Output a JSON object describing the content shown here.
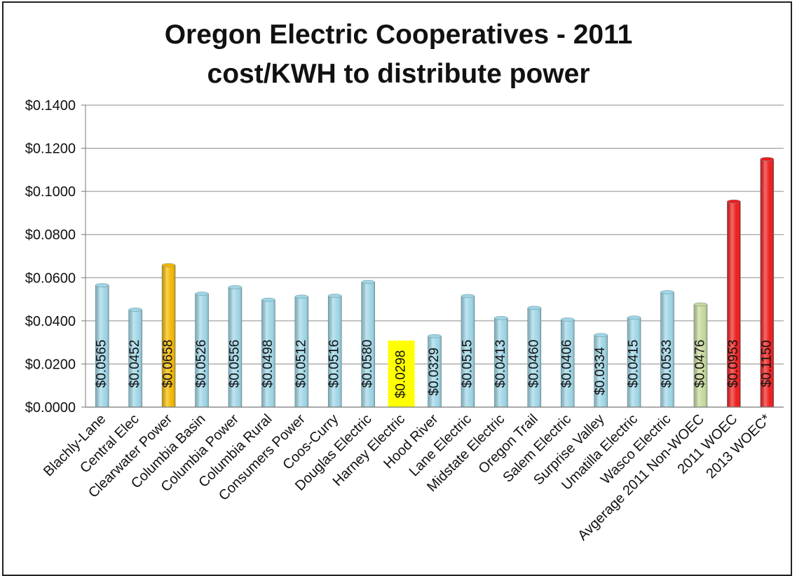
{
  "chart_data": {
    "type": "bar",
    "title": "Oregon Electric Cooperatives - 2011",
    "subtitle": "cost/KWH to distribute power",
    "categories": [
      "Blachly-Lane",
      "Central Elec",
      "Clearwater Power",
      "Columbia Basin",
      "Columbia Power",
      "Columbia Rural",
      "Consumers Power",
      "Coos-Curry",
      "Douglas Electric",
      "Harney Electric",
      "Hood River",
      "Lane Electric",
      "Midstate Electric",
      "Oregon Trail",
      "Salem Electric",
      "Surprise Valley",
      "Umatilla Electric",
      "Wasco Electric",
      "Avgerage 2011 Non-WOEC",
      "2011 WOEC",
      "2013 WOEC*"
    ],
    "values": [
      0.0565,
      0.0452,
      0.0658,
      0.0526,
      0.0556,
      0.0498,
      0.0512,
      0.0516,
      0.058,
      0.0298,
      0.0329,
      0.0515,
      0.0413,
      0.046,
      0.0406,
      0.0334,
      0.0415,
      0.0533,
      0.0476,
      0.0953,
      0.115
    ],
    "data_labels": [
      "$0.0565",
      "$0.0452",
      "$0.0658",
      "$0.0526",
      "$0.0556",
      "$0.0498",
      "$0.0512",
      "$0.0516",
      "$0.0580",
      "$0.0298",
      "$0.0329",
      "$0.0515",
      "$0.0413",
      "$0.0460",
      "$0.0406",
      "$0.0334",
      "$0.0415",
      "$0.0533",
      "$0.0476",
      "$0.0953",
      "$0.1150"
    ],
    "bar_colors": [
      "#9fd6e6",
      "#9fd6e6",
      "#f5b800",
      "#9fd6e6",
      "#9fd6e6",
      "#9fd6e6",
      "#9fd6e6",
      "#9fd6e6",
      "#9fd6e6",
      "#9fd6e6",
      "#9fd6e6",
      "#9fd6e6",
      "#9fd6e6",
      "#9fd6e6",
      "#9fd6e6",
      "#9fd6e6",
      "#9fd6e6",
      "#9fd6e6",
      "#c7d99a",
      "#ee1c1c",
      "#ee1c1c"
    ],
    "highlight_label_index": 9,
    "highlight_color": "#ffff00",
    "ylim": [
      0,
      0.14
    ],
    "yticks": [
      0.0,
      0.02,
      0.04,
      0.06,
      0.08,
      0.1,
      0.12,
      0.14
    ],
    "ytick_labels": [
      "$0.0000",
      "$0.0200",
      "$0.0400",
      "$0.0600",
      "$0.0800",
      "$0.1000",
      "$0.1200",
      "$0.1400"
    ],
    "grid": true,
    "legend": "none",
    "xlabel": "",
    "ylabel": ""
  }
}
